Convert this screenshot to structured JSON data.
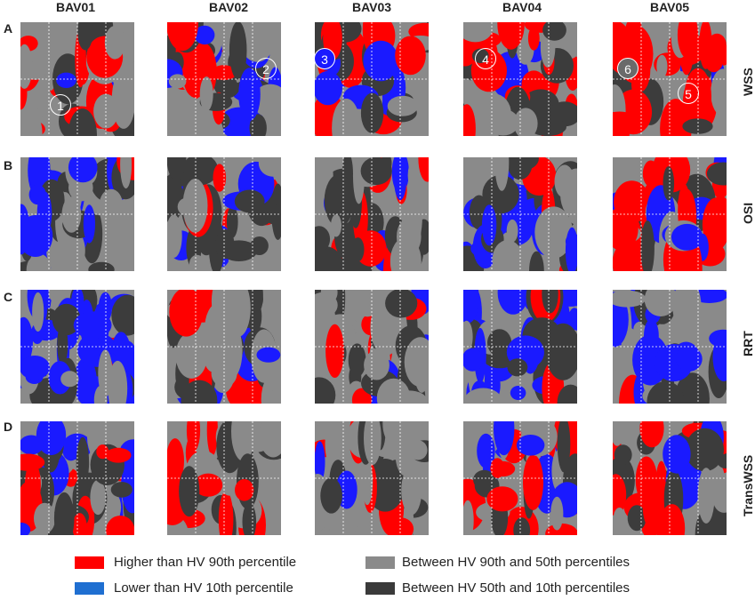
{
  "columns": [
    "BAV01",
    "BAV02",
    "BAV03",
    "BAV04",
    "BAV05"
  ],
  "rows": [
    {
      "letter": "A",
      "label": "WSS"
    },
    {
      "letter": "B",
      "label": "OSI"
    },
    {
      "letter": "C",
      "label": "RRT"
    },
    {
      "letter": "D",
      "label": "TransWSS"
    }
  ],
  "markers": [
    {
      "text": "1",
      "style": "outline"
    },
    {
      "text": "2",
      "style": "outline"
    },
    {
      "text": "3",
      "style": "filled-blue"
    },
    {
      "text": "4",
      "style": "outline"
    },
    {
      "text": "5",
      "style": "outline"
    },
    {
      "text": "6",
      "style": "filled-gray"
    }
  ],
  "legend": {
    "higher": {
      "label": "Higher than HV 90th percentile",
      "color": "#ff0000"
    },
    "lower": {
      "label": "Lower than HV 10th percentile",
      "color": "#1f6fd1"
    },
    "mid_high": {
      "label": "Between HV 90th and 50th percentiles",
      "color": "#8a8a8a"
    },
    "mid_low": {
      "label": "Between HV 50th and 10th percentiles",
      "color": "#3a3a3a"
    }
  },
  "map_colors": {
    "red": "#ff0000",
    "blue": "#1a1aff",
    "gray": "#8a8a8a",
    "dark": "#3c3c3c"
  }
}
